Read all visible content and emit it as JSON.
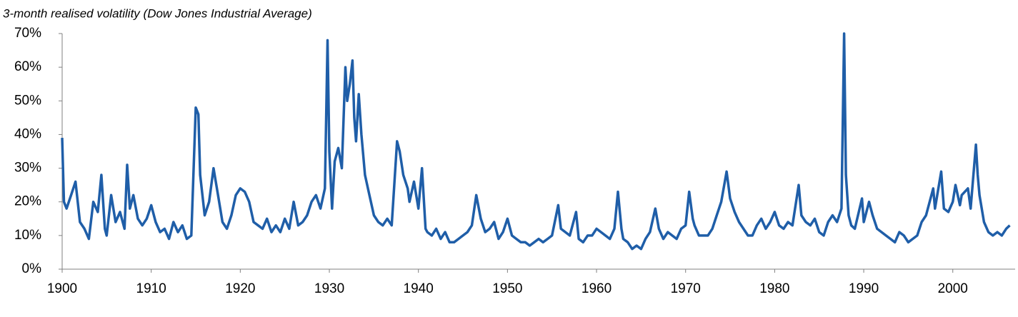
{
  "chart_data": {
    "type": "line",
    "subtitle": "3-month realised volatility (Dow Jones Industrial Average)",
    "x": [
      1900,
      1900.2,
      1900.5,
      1901,
      1901.5,
      1902,
      1902.5,
      1903,
      1903.5,
      1904,
      1904.4,
      1904.8,
      1905,
      1905.5,
      1906,
      1906.5,
      1907,
      1907.3,
      1907.6,
      1908,
      1908.5,
      1909,
      1909.5,
      1910,
      1910.5,
      1911,
      1911.5,
      1912,
      1912.5,
      1913,
      1913.5,
      1914,
      1914.5,
      1915,
      1915.3,
      1915.5,
      1916,
      1916.5,
      1917,
      1917.5,
      1918,
      1918.5,
      1919,
      1919.5,
      1920,
      1920.5,
      1921,
      1921.5,
      1922,
      1922.5,
      1923,
      1923.5,
      1924,
      1924.5,
      1925,
      1925.5,
      1926,
      1926.5,
      1927,
      1927.5,
      1928,
      1928.5,
      1929,
      1929.5,
      1929.8,
      1930,
      1930.3,
      1930.6,
      1931,
      1931.4,
      1931.8,
      1932,
      1932.3,
      1932.6,
      1932.8,
      1933,
      1933.3,
      1933.6,
      1934,
      1934.5,
      1935,
      1935.5,
      1936,
      1936.5,
      1937,
      1937.6,
      1937.9,
      1938.3,
      1938.8,
      1939,
      1939.5,
      1940,
      1940.4,
      1940.8,
      1941,
      1941.5,
      1942,
      1942.5,
      1943,
      1943.5,
      1944,
      1944.5,
      1945,
      1945.5,
      1946,
      1946.5,
      1947,
      1947.5,
      1948,
      1948.5,
      1949,
      1949.5,
      1950,
      1950.5,
      1951,
      1951.5,
      1952,
      1952.5,
      1953,
      1953.5,
      1954,
      1954.5,
      1955,
      1955.7,
      1956,
      1956.5,
      1957,
      1957.7,
      1958,
      1958.5,
      1959,
      1959.5,
      1960,
      1960.5,
      1961,
      1961.5,
      1962,
      1962.4,
      1962.8,
      1963,
      1963.5,
      1964,
      1964.5,
      1965,
      1965.5,
      1966,
      1966.6,
      1967,
      1967.5,
      1968,
      1968.5,
      1969,
      1969.5,
      1970,
      1970.4,
      1970.8,
      1971,
      1971.5,
      1972,
      1972.5,
      1973,
      1973.5,
      1974,
      1974.6,
      1975,
      1975.5,
      1976,
      1976.5,
      1977,
      1977.5,
      1978,
      1978.5,
      1979,
      1979.5,
      1980,
      1980.5,
      1981,
      1981.5,
      1982,
      1982.7,
      1983,
      1983.5,
      1984,
      1984.5,
      1985,
      1985.5,
      1986,
      1986.5,
      1987,
      1987.5,
      1987.8,
      1988,
      1988.3,
      1988.6,
      1989,
      1989.8,
      1990,
      1990.6,
      1991,
      1991.5,
      1992,
      1992.5,
      1993,
      1993.5,
      1994,
      1994.5,
      1995,
      1995.5,
      1996,
      1996.5,
      1997,
      1997.8,
      1998,
      1998.7,
      1999,
      1999.5,
      2000,
      2000.3,
      2000.8,
      2001,
      2001.7,
      2002,
      2002.6,
      2002.8,
      2003,
      2003.5,
      2004,
      2004.5,
      2005,
      2005.5,
      2006,
      2006.4
    ],
    "series": [
      {
        "color": "#1f5ea8",
        "values": [
          39,
          20,
          18,
          22,
          26,
          14,
          12,
          9,
          20,
          17,
          28,
          12,
          10,
          22,
          14,
          17,
          12,
          31,
          18,
          22,
          15,
          13,
          15,
          19,
          14,
          11,
          12,
          9,
          14,
          11,
          13,
          9,
          10,
          48,
          46,
          28,
          16,
          20,
          30,
          22,
          14,
          12,
          16,
          22,
          24,
          23,
          20,
          14,
          13,
          12,
          15,
          11,
          13,
          11,
          15,
          12,
          20,
          13,
          14,
          16,
          20,
          22,
          18,
          24,
          68,
          35,
          18,
          32,
          36,
          30,
          60,
          50,
          55,
          62,
          45,
          38,
          52,
          40,
          28,
          22,
          16,
          14,
          13,
          15,
          13,
          38,
          35,
          28,
          24,
          20,
          26,
          18,
          30,
          12,
          11,
          10,
          12,
          9,
          11,
          8,
          8,
          9,
          10,
          11,
          13,
          22,
          15,
          11,
          12,
          14,
          9,
          11,
          15,
          10,
          9,
          8,
          8,
          7,
          8,
          9,
          8,
          9,
          10,
          19,
          12,
          11,
          10,
          17,
          9,
          8,
          10,
          10,
          12,
          11,
          10,
          9,
          12,
          23,
          12,
          9,
          8,
          6,
          7,
          6,
          9,
          11,
          18,
          12,
          9,
          11,
          10,
          9,
          12,
          13,
          23,
          15,
          13,
          10,
          10,
          10,
          12,
          16,
          20,
          29,
          21,
          17,
          14,
          12,
          10,
          10,
          13,
          15,
          12,
          14,
          17,
          13,
          12,
          14,
          13,
          25,
          16,
          14,
          13,
          15,
          11,
          10,
          14,
          16,
          14,
          18,
          70,
          28,
          16,
          13,
          12,
          21,
          14,
          20,
          16,
          12,
          11,
          10,
          9,
          8,
          11,
          10,
          8,
          9,
          10,
          14,
          16,
          24,
          18,
          29,
          18,
          17,
          20,
          25,
          19,
          22,
          24,
          18,
          37,
          28,
          22,
          14,
          11,
          10,
          11,
          10,
          12,
          13
        ]
      }
    ],
    "xlim": [
      1900,
      2007
    ],
    "xticks": [
      1900,
      1910,
      1920,
      1930,
      1940,
      1950,
      1960,
      1970,
      1980,
      1990,
      2000
    ],
    "ylim": [
      0,
      70
    ],
    "yticks": [
      {
        "value": 0,
        "label": "0%"
      },
      {
        "value": 10,
        "label": "10%"
      },
      {
        "value": 20,
        "label": "20%"
      },
      {
        "value": 30,
        "label": "30%"
      },
      {
        "value": 40,
        "label": "40%"
      },
      {
        "value": 50,
        "label": "50%"
      },
      {
        "value": 60,
        "label": "60%"
      },
      {
        "value": 70,
        "label": "70%"
      }
    ]
  }
}
